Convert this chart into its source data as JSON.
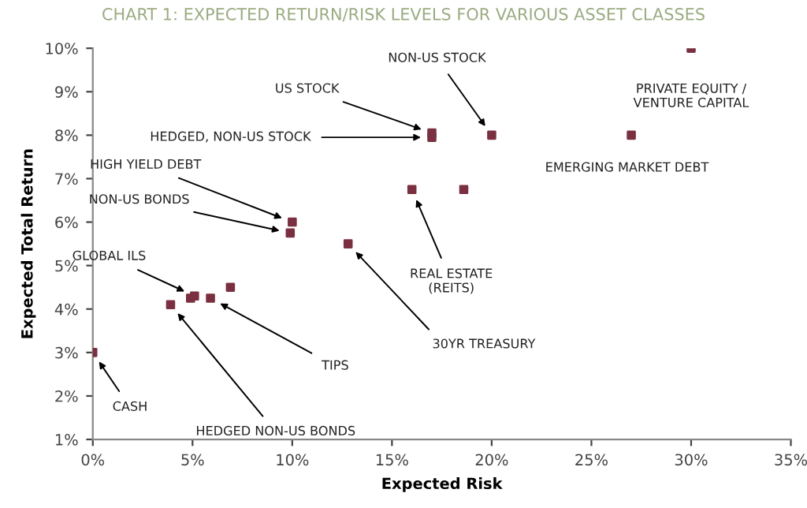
{
  "chart_data": {
    "type": "scatter",
    "title": "CHART 1: EXPECTED RETURN/RISK LEVELS FOR VARIOUS ASSET CLASSES",
    "xlabel": "Expected Risk",
    "ylabel": "Expected Total Return",
    "x": [
      0,
      3.9,
      4.9,
      5.1,
      5.9,
      6.9,
      12.8,
      9.9,
      10,
      16,
      18.6,
      17,
      17,
      20,
      27,
      30
    ],
    "series": [
      {
        "color": "#7a3040",
        "values": [
          3.0,
          4.1,
          4.25,
          4.3,
          4.25,
          4.5,
          5.5,
          5.75,
          6.0,
          6.75,
          6.75,
          8.05,
          7.95,
          8.0,
          8.0,
          10.0
        ]
      }
    ],
    "marker": "square",
    "grid": false,
    "legend": false,
    "xlim": [
      0,
      35
    ],
    "ylim": [
      1,
      10
    ],
    "xticks": [
      {
        "value": 0,
        "label": "0%"
      },
      {
        "value": 5,
        "label": "5%"
      },
      {
        "value": 10,
        "label": "10%"
      },
      {
        "value": 15,
        "label": "15%"
      },
      {
        "value": 20,
        "label": "20%"
      },
      {
        "value": 25,
        "label": "25%"
      },
      {
        "value": 30,
        "label": "30%"
      },
      {
        "value": 35,
        "label": "35%"
      }
    ],
    "yticks": [
      {
        "value": 1,
        "label": "1%"
      },
      {
        "value": 2,
        "label": "2%"
      },
      {
        "value": 3,
        "label": "3%"
      },
      {
        "value": 4,
        "label": "4%"
      },
      {
        "value": 5,
        "label": "5%"
      },
      {
        "value": 6,
        "label": "6%"
      },
      {
        "value": 7,
        "label": "7%"
      },
      {
        "value": 8,
        "label": "8%"
      },
      {
        "value": 9,
        "label": "9%"
      },
      {
        "value": 10,
        "label": "10%"
      }
    ],
    "annotations": [
      {
        "text": "PRIVATE EQUITY /\nVENTURE CAPITAL",
        "x": 30,
        "y": 10.0
      },
      {
        "text": "EMERGING MARKET DEBT",
        "x": 27,
        "y": 8.0
      },
      {
        "text": "NON-US STOCK",
        "x": 20,
        "y": 8.0
      },
      {
        "text": "US STOCK",
        "x": 17,
        "y": 8.05
      },
      {
        "text": "HEDGED, NON-US STOCK",
        "x": 17,
        "y": 7.95
      },
      {
        "text": "HIGH YIELD DEBT",
        "x": 10,
        "y": 6.0
      },
      {
        "text": "NON-US BONDS",
        "x": 9.9,
        "y": 5.75
      },
      {
        "text": "REAL ESTATE\n(REITS)",
        "x": 16,
        "y": 6.75
      },
      {
        "text": "30YR TREASURY",
        "x": 12.8,
        "y": 5.5
      },
      {
        "text": "GLOBAL ILS",
        "x": 5.1,
        "y": 4.3
      },
      {
        "text": "TIPS",
        "x": 5.9,
        "y": 4.25
      },
      {
        "text": "CASH",
        "x": 0,
        "y": 3.0
      },
      {
        "text": "HEDGED NON-US BONDS",
        "x": 3.9,
        "y": 4.1
      }
    ]
  }
}
